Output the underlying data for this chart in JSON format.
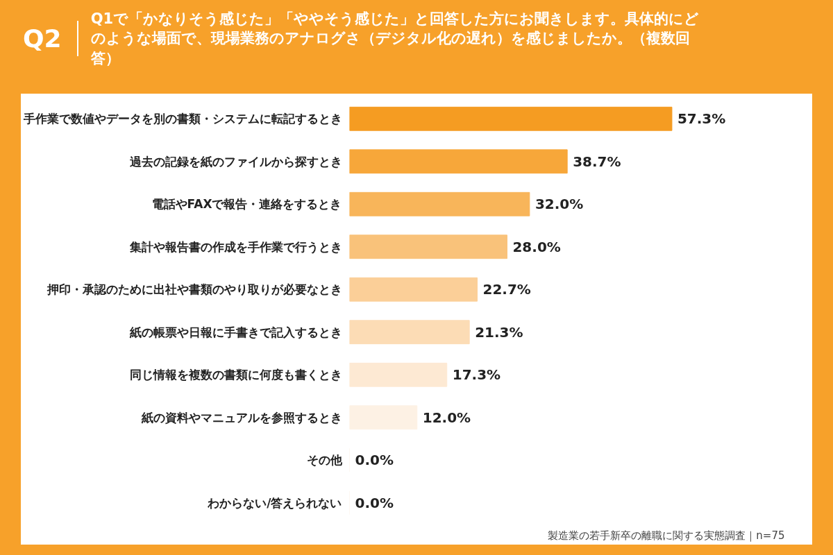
{
  "chart_data": {
    "type": "bar",
    "orientation": "horizontal",
    "title": "Q2",
    "subtitle": "Q1で「かなりそう感じた」「ややそう感じた」と回答した方にお聞きします。具体的にどのような場面で、現場業務のアナログさ（デジタル化の遅れ）を感じましたか。（複数回答）",
    "categories": [
      "手作業で数値やデータを別の書類・システムに転記するとき",
      "過去の記録を紙のファイルから探すとき",
      "電話やFAXで報告・連絡をするとき",
      "集計や報告書の作成を手作業で行うとき",
      "押印・承認のために出社や書類のやり取りが必要なとき",
      "紙の帳票や日報に手書きで記入するとき",
      "同じ情報を複数の書類に何度も書くとき",
      "紙の資料やマニュアルを参照するとき",
      "その他",
      "わからない/答えられない"
    ],
    "values": [
      57.3,
      38.7,
      32.0,
      28.0,
      22.7,
      21.3,
      17.3,
      12.0,
      0.0,
      0.0
    ],
    "value_labels": [
      "57.3%",
      "38.7%",
      "32.0%",
      "28.0%",
      "22.7%",
      "21.3%",
      "17.3%",
      "12.0%",
      "0.0%",
      "0.0%"
    ],
    "colors": [
      "#f59c22",
      "#f7a73a",
      "#f8b55a",
      "#f9c27a",
      "#fbcf98",
      "#fcdcb5",
      "#fde9d3",
      "#fdf1e4",
      "#fef6ee",
      "#fef6ee"
    ],
    "annotations": [
      "製造業の若手新卒の離職に関する実態調査｜n=75"
    ],
    "grid": false
  }
}
